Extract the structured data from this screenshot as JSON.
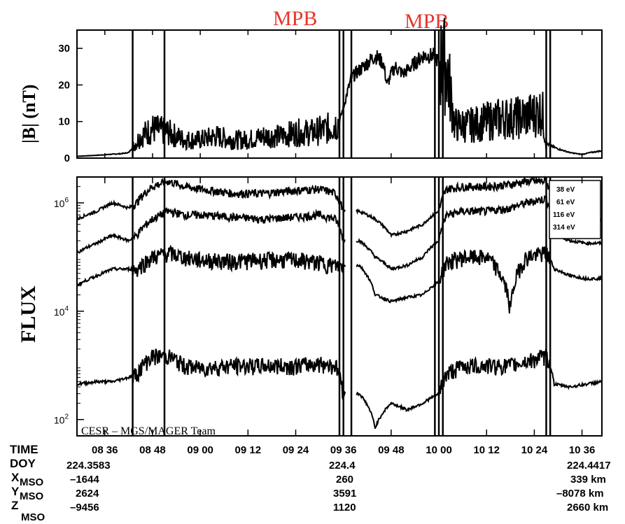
{
  "chart_data": [
    {
      "type": "line",
      "panel": "magnetic-field",
      "ylabel": "|B| (nT)",
      "ylim": [
        0,
        35
      ],
      "y_ticks": [
        0,
        10,
        20,
        30
      ],
      "x_ticks": [
        "08 36",
        "08 48",
        "09 00",
        "09 12",
        "09 24",
        "09 36",
        "09 48",
        "10 00",
        "10 12",
        "10 24",
        "10 36"
      ],
      "xlim_minutes_of_day": [
        509,
        641
      ],
      "series": [
        {
          "x": [
            509,
            513,
            517,
            520,
            522,
            525,
            528,
            532,
            536,
            540,
            544,
            548,
            552,
            556,
            560,
            564,
            568,
            572,
            575,
            577,
            578,
            580,
            582,
            584,
            586,
            587,
            588,
            589,
            591,
            593,
            596,
            599,
            600,
            602,
            604,
            606,
            608,
            612,
            616,
            620,
            624,
            626,
            627,
            628,
            630,
            633,
            636,
            638,
            641
          ],
          "y": [
            0.5,
            0.7,
            1.0,
            1.2,
            1.5,
            6,
            8,
            7,
            5,
            5,
            6,
            5,
            5,
            6,
            6,
            7,
            7,
            8,
            10,
            18,
            22,
            24,
            26,
            28,
            26,
            20,
            23,
            25,
            23,
            25,
            28,
            28,
            26,
            25,
            9,
            9,
            9,
            10,
            11,
            11,
            12,
            13,
            4,
            3.5,
            2.5,
            1.5,
            1.0,
            1.5,
            2.0
          ]
        }
      ],
      "vertical_lines_minutes": [
        523,
        531,
        575,
        576,
        578,
        599,
        600,
        601,
        627,
        628
      ]
    },
    {
      "type": "line",
      "panel": "electron-flux",
      "ylabel": "FLUX",
      "y_scale": "log",
      "ylim": [
        50,
        3000000
      ],
      "y_ticks": [
        "10^2",
        "10^4",
        "10^6"
      ],
      "legend": {
        "placement": "top-right",
        "entries": [
          "38 eV",
          "61 eV",
          "116 eV",
          "314 eV"
        ]
      },
      "credit": "CESR – MGS/MAGER Team",
      "series": [
        {
          "name": "38 eV",
          "x": [
            509,
            514,
            518,
            522,
            524,
            528,
            532,
            536,
            540,
            548,
            556,
            564,
            570,
            574,
            576,
            578,
            580,
            584,
            588,
            592,
            596,
            600,
            602,
            606,
            612,
            618,
            622,
            627,
            629,
            633,
            637,
            641
          ],
          "y": [
            500000,
            700000,
            1000000,
            800000,
            1000000,
            2000000,
            2500000,
            2000000,
            1800000,
            1500000,
            1500000,
            1700000,
            1800000,
            1500000,
            700000,
            700000,
            700000,
            500000,
            250000,
            300000,
            400000,
            700000,
            1800000,
            2000000,
            2000000,
            2200000,
            2500000,
            2500000,
            700000,
            500000,
            500000,
            500000
          ]
        },
        {
          "name": "61 eV",
          "x": [
            509,
            514,
            518,
            522,
            524,
            528,
            532,
            536,
            540,
            548,
            556,
            564,
            570,
            574,
            576,
            578,
            580,
            584,
            588,
            592,
            596,
            600,
            602,
            606,
            612,
            618,
            622,
            627,
            629,
            633,
            637,
            641
          ],
          "y": [
            120000,
            180000,
            250000,
            200000,
            250000,
            500000,
            700000,
            600000,
            600000,
            550000,
            500000,
            550000,
            600000,
            500000,
            200000,
            200000,
            200000,
            100000,
            60000,
            70000,
            100000,
            200000,
            600000,
            700000,
            700000,
            800000,
            1000000,
            1200000,
            250000,
            200000,
            180000,
            180000
          ]
        },
        {
          "name": "116 eV",
          "x": [
            509,
            514,
            518,
            522,
            524,
            528,
            532,
            536,
            540,
            548,
            556,
            564,
            570,
            574,
            576,
            578,
            580,
            584,
            588,
            592,
            596,
            600,
            602,
            606,
            612,
            618,
            622,
            627,
            629,
            633,
            637,
            641
          ],
          "y": [
            30000,
            45000,
            60000,
            60000,
            60000,
            100000,
            120000,
            100000,
            90000,
            85000,
            90000,
            90000,
            80000,
            70000,
            70000,
            70000,
            70000,
            20000,
            15000,
            18000,
            20000,
            35000,
            80000,
            100000,
            100000,
            10000,
            100000,
            120000,
            60000,
            45000,
            40000,
            40000
          ]
        },
        {
          "name": "314 eV",
          "x": [
            509,
            514,
            518,
            522,
            524,
            528,
            532,
            536,
            540,
            548,
            556,
            564,
            570,
            574,
            576,
            578,
            580,
            584,
            588,
            592,
            596,
            600,
            602,
            606,
            612,
            618,
            622,
            627,
            629,
            633,
            637,
            641
          ],
          "y": [
            450,
            500,
            500,
            600,
            700,
            1500,
            1500,
            1000,
            900,
            1000,
            1000,
            1000,
            1100,
            1000,
            300,
            300,
            300,
            70,
            200,
            150,
            200,
            300,
            700,
            1000,
            1000,
            1000,
            1200,
            1500,
            450,
            400,
            450,
            500
          ]
        }
      ],
      "vertical_lines_minutes": [
        523,
        531,
        575,
        576,
        578,
        599,
        600,
        601,
        627,
        628
      ]
    }
  ],
  "annotations": {
    "mpb_left": "MPB",
    "mpb_right": "MPB"
  },
  "ephemeris": {
    "time_label": "TIME",
    "doy_label": "DOY",
    "x_label": "X",
    "y_label": "Y",
    "z_label": "Z",
    "mso_sub": "MSO",
    "columns": [
      {
        "doy": "224.3583",
        "x": "–1644",
        "y": "2624",
        "z": "–9456"
      },
      {
        "doy": "224.4",
        "x": "260",
        "y": "3591",
        "z": "1120"
      },
      {
        "doy": "224.4417",
        "x": "339 km",
        "y": "–8078 km",
        "z": "2660 km"
      }
    ]
  },
  "colors": {
    "mpb": "#e8342c",
    "trace": "#000000"
  }
}
